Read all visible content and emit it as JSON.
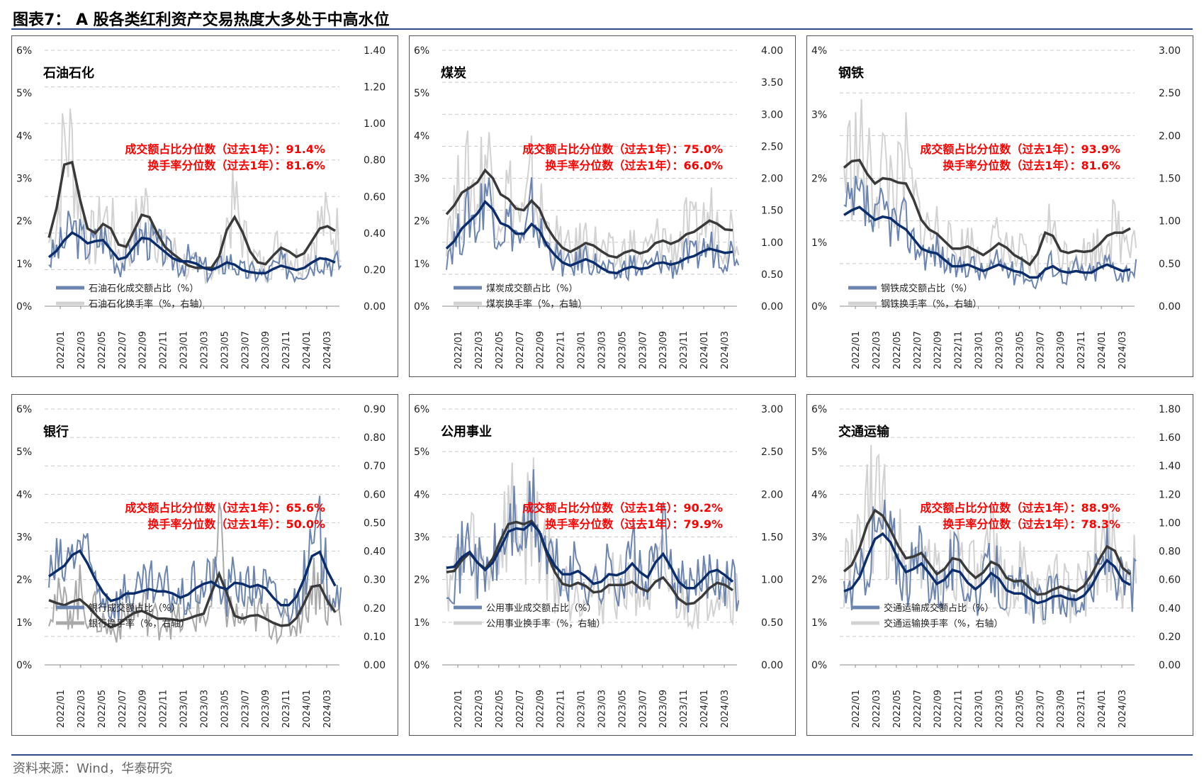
{
  "title": "图表7： A 股各类红利资产交易热度大多处于中高水位",
  "source": "资料来源：Wind，华泰研究",
  "colors": {
    "amount": "#6b85b0",
    "amount_smooth": "#0b2d6b",
    "turnover": "#d2d2d2",
    "turnover_smooth": "#3a3a3a",
    "stat": "#ff0000",
    "bank_turnover": "#a9a9a9"
  },
  "x_ticks": [
    "2022/01",
    "2022/03",
    "2022/05",
    "2022/07",
    "2022/09",
    "2022/11",
    "2023/01",
    "2023/03",
    "2023/05",
    "2023/07",
    "2023/09",
    "2023/11",
    "2024/01",
    "2024/03"
  ],
  "chart_data": [
    {
      "type": "line",
      "panel_title": "石油石化",
      "stat1": "成交额占比分位数（过去1年）：91.4%",
      "stat2": "换手率分位数（过去1年）：81.6%",
      "left_ticks": [
        "0%",
        "1%",
        "2%",
        "3%",
        "4%",
        "5%",
        "6%"
      ],
      "right_ticks": [
        "0.00",
        "0.20",
        "0.40",
        "0.60",
        "0.80",
        "1.00",
        "1.20",
        "1.40"
      ],
      "ylim_left": [
        0,
        6
      ],
      "ylim_right": [
        0,
        1.4
      ],
      "series": [
        {
          "name": "石油石化成交额占比（%）",
          "axis": "left",
          "values": [
            1.1,
            1.3,
            1.5,
            1.9,
            1.6,
            1.4,
            1.5,
            1.7,
            1.3,
            1.0,
            1.1,
            1.4,
            1.7,
            1.6,
            1.4,
            1.3,
            1.1,
            1.0,
            1.1,
            1.0,
            0.9,
            0.8,
            0.9,
            1.1,
            1.0,
            0.8,
            0.8,
            0.8,
            0.7,
            0.9,
            1.0,
            0.9,
            0.8,
            0.9,
            1.0,
            1.2,
            1.1,
            1.0
          ]
        },
        {
          "name": "石油石化换手率（%，右轴）",
          "axis": "right",
          "values": [
            0.35,
            0.45,
            0.9,
            0.85,
            0.55,
            0.4,
            0.35,
            0.5,
            0.45,
            0.3,
            0.3,
            0.4,
            0.55,
            0.5,
            0.4,
            0.3,
            0.3,
            0.25,
            0.22,
            0.2,
            0.22,
            0.2,
            0.22,
            0.45,
            0.55,
            0.4,
            0.28,
            0.24,
            0.2,
            0.28,
            0.35,
            0.3,
            0.25,
            0.28,
            0.35,
            0.45,
            0.45,
            0.4
          ]
        }
      ]
    },
    {
      "type": "line",
      "panel_title": "煤炭",
      "stat1": "成交额占比分位数（过去1年）：75.0%",
      "stat2": "换手率分位数（过去1年）：66.0%",
      "left_ticks": [
        "0%",
        "1%",
        "2%",
        "3%",
        "4%",
        "5%",
        "6%"
      ],
      "right_ticks": [
        "0.00",
        "0.50",
        "1.00",
        "1.50",
        "2.00",
        "2.50",
        "3.00",
        "3.50",
        "4.00"
      ],
      "ylim_left": [
        0,
        6
      ],
      "ylim_right": [
        0,
        4.0
      ],
      "series": [
        {
          "name": "煤炭成交额占比（%）",
          "axis": "left",
          "values": [
            1.3,
            1.5,
            1.8,
            2.2,
            1.8,
            2.9,
            2.2,
            1.8,
            2.0,
            1.7,
            1.4,
            2.3,
            1.7,
            1.4,
            1.2,
            1.0,
            0.9,
            1.0,
            1.2,
            1.0,
            0.9,
            0.8,
            0.7,
            0.9,
            1.0,
            0.8,
            0.9,
            1.0,
            1.1,
            0.9,
            1.0,
            1.2,
            1.1,
            1.3,
            1.4,
            1.3,
            1.2,
            1.3
          ]
        },
        {
          "name": "煤炭换手率（%，右轴）",
          "axis": "right",
          "values": [
            1.4,
            1.55,
            1.8,
            1.95,
            1.7,
            2.4,
            2.0,
            1.6,
            1.8,
            1.5,
            1.3,
            1.9,
            1.5,
            1.2,
            1.05,
            0.9,
            0.8,
            0.9,
            1.05,
            0.95,
            0.85,
            0.8,
            0.7,
            0.85,
            0.95,
            0.75,
            0.85,
            1.0,
            1.1,
            0.9,
            1.0,
            1.2,
            1.1,
            1.25,
            1.4,
            1.3,
            1.15,
            1.2
          ]
        }
      ]
    },
    {
      "type": "line",
      "panel_title": "钢铁",
      "stat1": "成交额占比分位数（过去1年）：93.9%",
      "stat2": "换手率分位数（过去1年）：81.6%",
      "left_ticks": [
        "0%",
        "1%",
        "2%",
        "3%",
        "4%"
      ],
      "right_ticks": [
        "0.00",
        "0.50",
        "1.00",
        "1.50",
        "2.00",
        "2.50",
        "3.00"
      ],
      "ylim_left": [
        0,
        4
      ],
      "ylim_right": [
        0,
        3.0
      ],
      "series": [
        {
          "name": "钢铁成交额占比（%）",
          "axis": "left",
          "values": [
            1.4,
            1.5,
            1.6,
            1.5,
            1.2,
            1.5,
            1.4,
            1.2,
            1.3,
            1.0,
            0.9,
            0.8,
            0.9,
            0.7,
            0.6,
            0.6,
            0.7,
            0.6,
            0.5,
            0.6,
            0.7,
            0.6,
            0.5,
            0.6,
            0.4,
            0.4,
            0.6,
            0.7,
            0.5,
            0.5,
            0.6,
            0.5,
            0.5,
            0.6,
            0.7,
            0.6,
            0.5,
            0.6
          ]
        },
        {
          "name": "钢铁换手率（%，右轴）",
          "axis": "right",
          "values": [
            1.6,
            1.7,
            1.8,
            1.55,
            1.3,
            1.6,
            1.5,
            1.35,
            1.6,
            1.2,
            1.0,
            0.85,
            0.9,
            0.75,
            0.65,
            0.65,
            0.75,
            0.65,
            0.55,
            0.65,
            0.8,
            0.7,
            0.55,
            0.6,
            0.45,
            0.45,
            1.1,
            0.8,
            0.6,
            0.6,
            0.7,
            0.6,
            0.65,
            0.7,
            0.85,
            0.9,
            0.8,
            0.95
          ]
        }
      ]
    },
    {
      "type": "line",
      "panel_title": "银行",
      "stat1": "成交额占比分位数（过去1年）：65.6%",
      "stat2": "换手率分位数（过去1年）：50.0%",
      "left_ticks": [
        "0%",
        "1%",
        "2%",
        "3%",
        "4%",
        "5%",
        "6%"
      ],
      "right_ticks": [
        "0.00",
        "0.10",
        "0.20",
        "0.30",
        "0.40",
        "0.50",
        "0.60",
        "0.70",
        "0.80",
        "0.90"
      ],
      "ylim_left": [
        0,
        6
      ],
      "ylim_right": [
        0,
        0.9
      ],
      "series": [
        {
          "name": "银行成交额占比（%）",
          "axis": "left",
          "values": [
            2.0,
            2.3,
            2.2,
            2.6,
            2.9,
            2.3,
            2.0,
            1.7,
            1.4,
            1.5,
            1.8,
            1.6,
            1.7,
            1.9,
            1.6,
            1.8,
            1.7,
            1.5,
            1.6,
            1.9,
            1.8,
            2.1,
            1.8,
            1.6,
            2.1,
            1.9,
            1.7,
            2.0,
            1.8,
            1.6,
            1.3,
            1.4,
            1.5,
            2.0,
            2.6,
            3.0,
            2.0,
            1.8
          ]
        },
        {
          "name": "银行换手率（%，右轴）",
          "axis": "right",
          "values": [
            0.23,
            0.22,
            0.2,
            0.22,
            0.25,
            0.2,
            0.18,
            0.15,
            0.12,
            0.14,
            0.17,
            0.18,
            0.2,
            0.18,
            0.15,
            0.17,
            0.16,
            0.15,
            0.16,
            0.18,
            0.17,
            0.2,
            0.44,
            0.2,
            0.17,
            0.15,
            0.18,
            0.18,
            0.16,
            0.15,
            0.13,
            0.14,
            0.15,
            0.22,
            0.28,
            0.32,
            0.2,
            0.18
          ]
        }
      ]
    },
    {
      "type": "line",
      "panel_title": "公用事业",
      "stat1": "成交额占比分位数（过去1年）：90.2%",
      "stat2": "换手率分位数（过去1年）：79.9%",
      "left_ticks": [
        "0%",
        "1%",
        "2%",
        "3%",
        "4%",
        "5%",
        "6%"
      ],
      "right_ticks": [
        "0.00",
        "0.50",
        "1.00",
        "1.50",
        "2.00",
        "2.50",
        "3.00"
      ],
      "ylim_left": [
        0,
        6
      ],
      "ylim_right": [
        0,
        3.0
      ],
      "series": [
        {
          "name": "公用事业成交额占比（%）",
          "axis": "left",
          "values": [
            2.3,
            2.2,
            2.5,
            2.9,
            2.3,
            2.1,
            2.4,
            2.7,
            3.2,
            3.4,
            2.8,
            3.7,
            3.1,
            2.6,
            2.3,
            2.1,
            2.0,
            2.4,
            2.0,
            1.9,
            1.8,
            2.3,
            2.1,
            1.9,
            2.8,
            2.0,
            1.9,
            2.4,
            2.9,
            2.2,
            1.9,
            1.8,
            1.7,
            2.0,
            2.2,
            2.3,
            2.1,
            1.9
          ]
        },
        {
          "name": "公用事业换手率（%，右轴）",
          "axis": "right",
          "values": [
            1.1,
            1.05,
            1.2,
            1.45,
            1.15,
            1.05,
            1.25,
            1.45,
            1.7,
            1.75,
            1.5,
            1.85,
            1.55,
            1.3,
            1.05,
            0.95,
            0.85,
            1.05,
            0.9,
            0.85,
            0.8,
            1.0,
            0.95,
            0.85,
            1.1,
            0.85,
            0.8,
            1.0,
            1.1,
            0.9,
            0.75,
            0.7,
            0.7,
            0.8,
            0.9,
            1.0,
            0.95,
            0.85
          ]
        }
      ]
    },
    {
      "type": "line",
      "panel_title": "交通运输",
      "stat1": "成交额占比分位数（过去1年）：88.9%",
      "stat2": "换手率分位数（过去1年）：78.3%",
      "left_ticks": [
        "0%",
        "1%",
        "2%",
        "3%",
        "4%",
        "5%",
        "6%"
      ],
      "right_ticks": [
        "0.00",
        "0.20",
        "0.40",
        "0.60",
        "0.80",
        "1.00",
        "1.20",
        "1.40",
        "1.60",
        "1.80"
      ],
      "ylim_left": [
        0,
        6
      ],
      "ylim_right": [
        0,
        1.8
      ],
      "series": [
        {
          "name": "交通运输成交额占比（%）",
          "axis": "left",
          "values": [
            1.7,
            1.8,
            1.9,
            2.6,
            3.0,
            3.2,
            2.9,
            2.5,
            2.0,
            2.2,
            2.6,
            2.1,
            1.8,
            1.9,
            2.4,
            2.2,
            1.9,
            1.7,
            1.8,
            2.4,
            2.0,
            1.7,
            1.6,
            1.8,
            1.5,
            1.4,
            1.5,
            1.6,
            1.7,
            1.5,
            1.5,
            1.6,
            1.8,
            2.2,
            2.6,
            2.4,
            1.8,
            1.9
          ]
        },
        {
          "name": "交通运输换手率（%，右轴）",
          "axis": "right",
          "values": [
            0.65,
            0.68,
            0.8,
            1.0,
            1.15,
            1.05,
            0.95,
            0.85,
            0.7,
            0.75,
            0.85,
            0.7,
            0.6,
            0.65,
            0.8,
            0.75,
            0.65,
            0.6,
            0.6,
            0.8,
            0.7,
            0.6,
            0.55,
            0.65,
            0.52,
            0.48,
            0.5,
            0.52,
            0.58,
            0.52,
            0.5,
            0.55,
            0.62,
            0.75,
            0.85,
            0.88,
            0.6,
            0.65
          ]
        }
      ]
    }
  ]
}
